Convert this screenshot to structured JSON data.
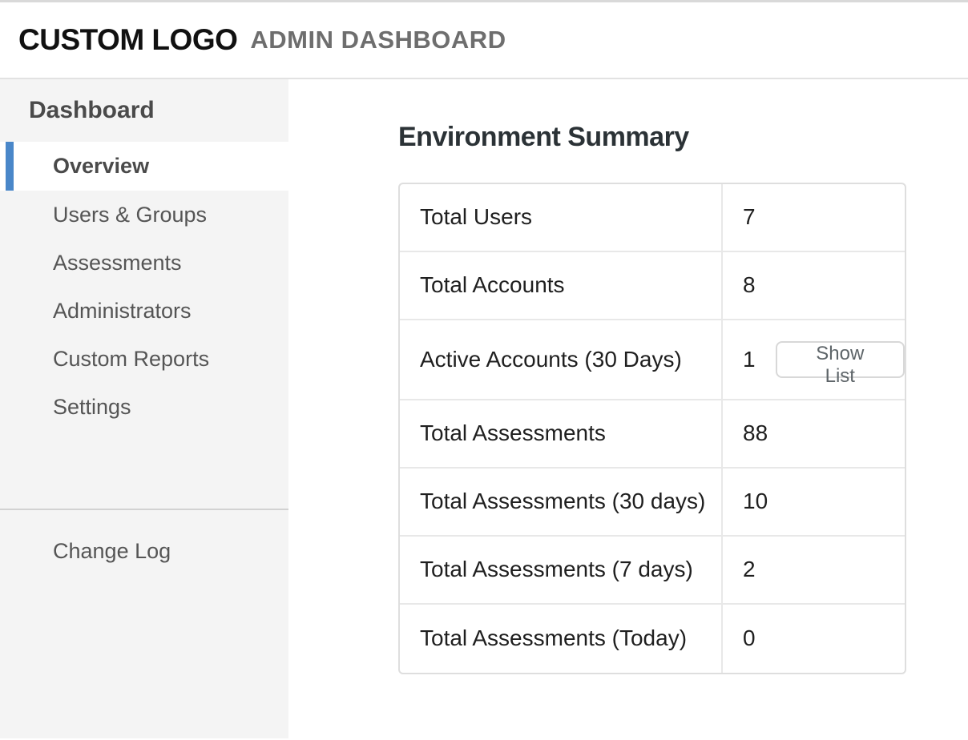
{
  "header": {
    "logo": "CUSTOM LOGO",
    "title": "ADMIN DASHBOARD"
  },
  "sidebar": {
    "section_title": "Dashboard",
    "items": [
      {
        "label": "Overview",
        "active": true
      },
      {
        "label": "Users & Groups",
        "active": false
      },
      {
        "label": "Assessments",
        "active": false
      },
      {
        "label": "Administrators",
        "active": false
      },
      {
        "label": "Custom Reports",
        "active": false
      },
      {
        "label": "Settings",
        "active": false
      }
    ],
    "footer_items": [
      {
        "label": "Change Log"
      }
    ]
  },
  "main": {
    "heading": "Environment Summary",
    "summary_table": {
      "rows": [
        {
          "label": "Total Users",
          "value": "7"
        },
        {
          "label": "Total Accounts",
          "value": "8"
        },
        {
          "label": "Active Accounts (30 Days)",
          "value": "1",
          "action": "Show List"
        },
        {
          "label": "Total Assessments",
          "value": "88"
        },
        {
          "label": "Total Assessments (30 days)",
          "value": "10"
        },
        {
          "label": "Total Assessments (7 days)",
          "value": "2"
        },
        {
          "label": "Total Assessments (Today)",
          "value": "0"
        }
      ]
    }
  },
  "colors": {
    "accent_blue": "#4a87c9",
    "sidebar_bg": "#f4f4f4",
    "top_bar": "#d9d9d9",
    "header_border": "#e2e2e2",
    "table_border": "#dedede",
    "text_dark": "#1f1f1f",
    "text_gray": "#555555"
  }
}
